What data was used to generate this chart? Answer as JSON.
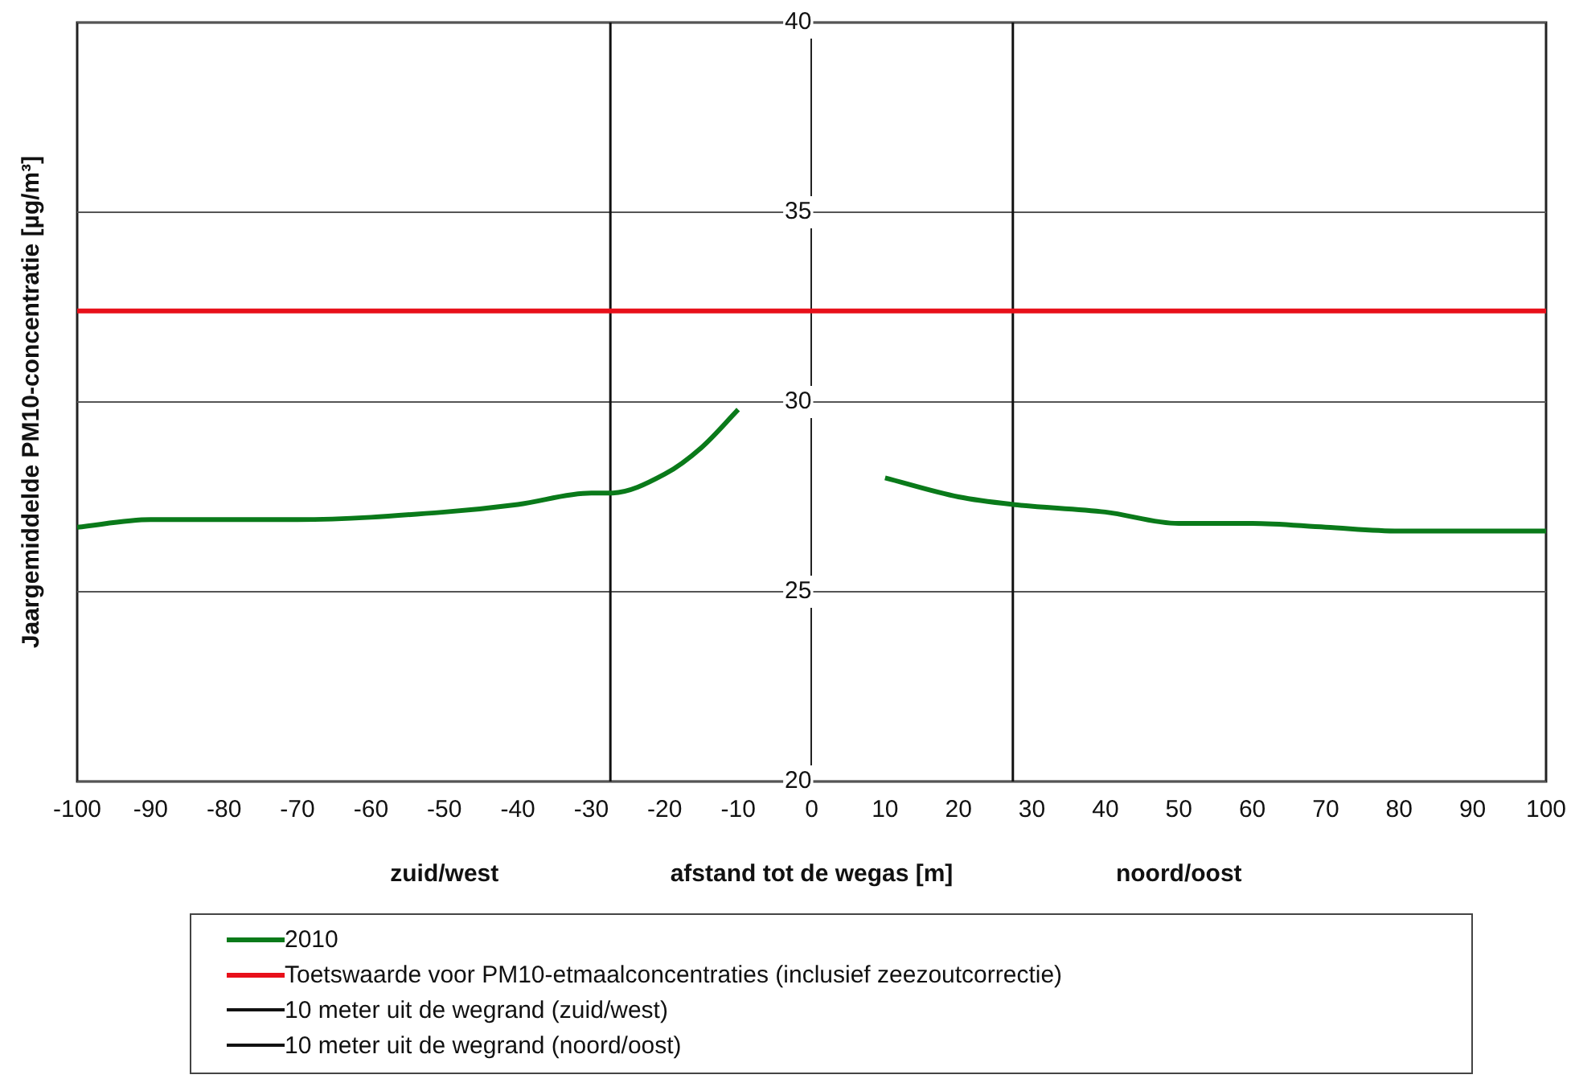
{
  "chart_data": {
    "type": "line",
    "xlabel": "afstand tot de wegas [m]",
    "ylabel": "Jaargemiddelde PM10-concentratie [µg/m³]",
    "annotations": [
      "zuid/west",
      "noord/oost"
    ],
    "xlim": [
      -100,
      100
    ],
    "ylim": [
      20,
      40
    ],
    "xticks": [
      -100,
      -90,
      -80,
      -70,
      -60,
      -50,
      -40,
      -30,
      -20,
      -10,
      0,
      10,
      20,
      30,
      40,
      50,
      60,
      70,
      80,
      90,
      100
    ],
    "yticks": [
      20,
      25,
      30,
      35,
      40
    ],
    "grid": "y",
    "legend": "bottom",
    "marker": "none",
    "series": [
      {
        "name": "2010",
        "color": "#0a7a1a",
        "x": [
          -100,
          -90,
          -70,
          -50,
          -40,
          -30,
          -27.4,
          -20,
          -15,
          -10,
          0,
          10,
          20,
          27.4,
          40,
          50,
          60,
          70,
          80,
          90,
          100
        ],
        "values": [
          26.7,
          26.9,
          26.9,
          27.1,
          27.3,
          27.6,
          27.6,
          28.1,
          28.8,
          29.8,
          null,
          28.0,
          27.5,
          27.3,
          27.1,
          26.8,
          26.8,
          26.7,
          26.6,
          26.6,
          26.6
        ]
      },
      {
        "name": "Toetswaarde voor PM10-etmaalconcentraties (inclusief zeezoutcorrectie)",
        "color": "#e8101a",
        "x": [
          -100,
          100
        ],
        "values": [
          32.4,
          32.4
        ]
      },
      {
        "name": "10 meter uit de wegrand (zuid/west)",
        "color": "#111111",
        "x": [
          -27.4,
          -27.4
        ],
        "values": [
          20,
          40
        ]
      },
      {
        "name": "10 meter uit de wegrand (noord/oost)",
        "color": "#111111",
        "x": [
          27.4,
          27.4
        ],
        "values": [
          20,
          40
        ]
      }
    ]
  }
}
